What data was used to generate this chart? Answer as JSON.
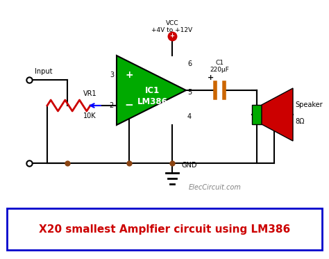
{
  "title": "X20 smallest Amplfier circuit using LM386",
  "title_color": "#cc0000",
  "title_box_color": "#0000cc",
  "watermark": "ElecCircuit.com",
  "bg_color": "#ffffff",
  "vcc_label": "VCC\n+4V to +12V",
  "gnd_label": "GND",
  "input_label": "Input",
  "vr1_label": "VR1",
  "vr1_val": "10K",
  "ic_label": "IC1\nLM386",
  "c1_label": "C1\n220μF",
  "speaker_label": "Speaker",
  "speaker_val": "8Ω",
  "pin3_label": "3",
  "pin2_label": "2",
  "pin6_label": "6",
  "pin4_label": "4",
  "pin5_label": "5",
  "green_color": "#00aa00",
  "red_color": "#cc0000",
  "wire_color": "#000000",
  "resistor_color": "#cc0000",
  "capacitor_color": "#cc6600",
  "vcc_dot_color": "#cc0000",
  "node_dot_color": "#8B4513"
}
